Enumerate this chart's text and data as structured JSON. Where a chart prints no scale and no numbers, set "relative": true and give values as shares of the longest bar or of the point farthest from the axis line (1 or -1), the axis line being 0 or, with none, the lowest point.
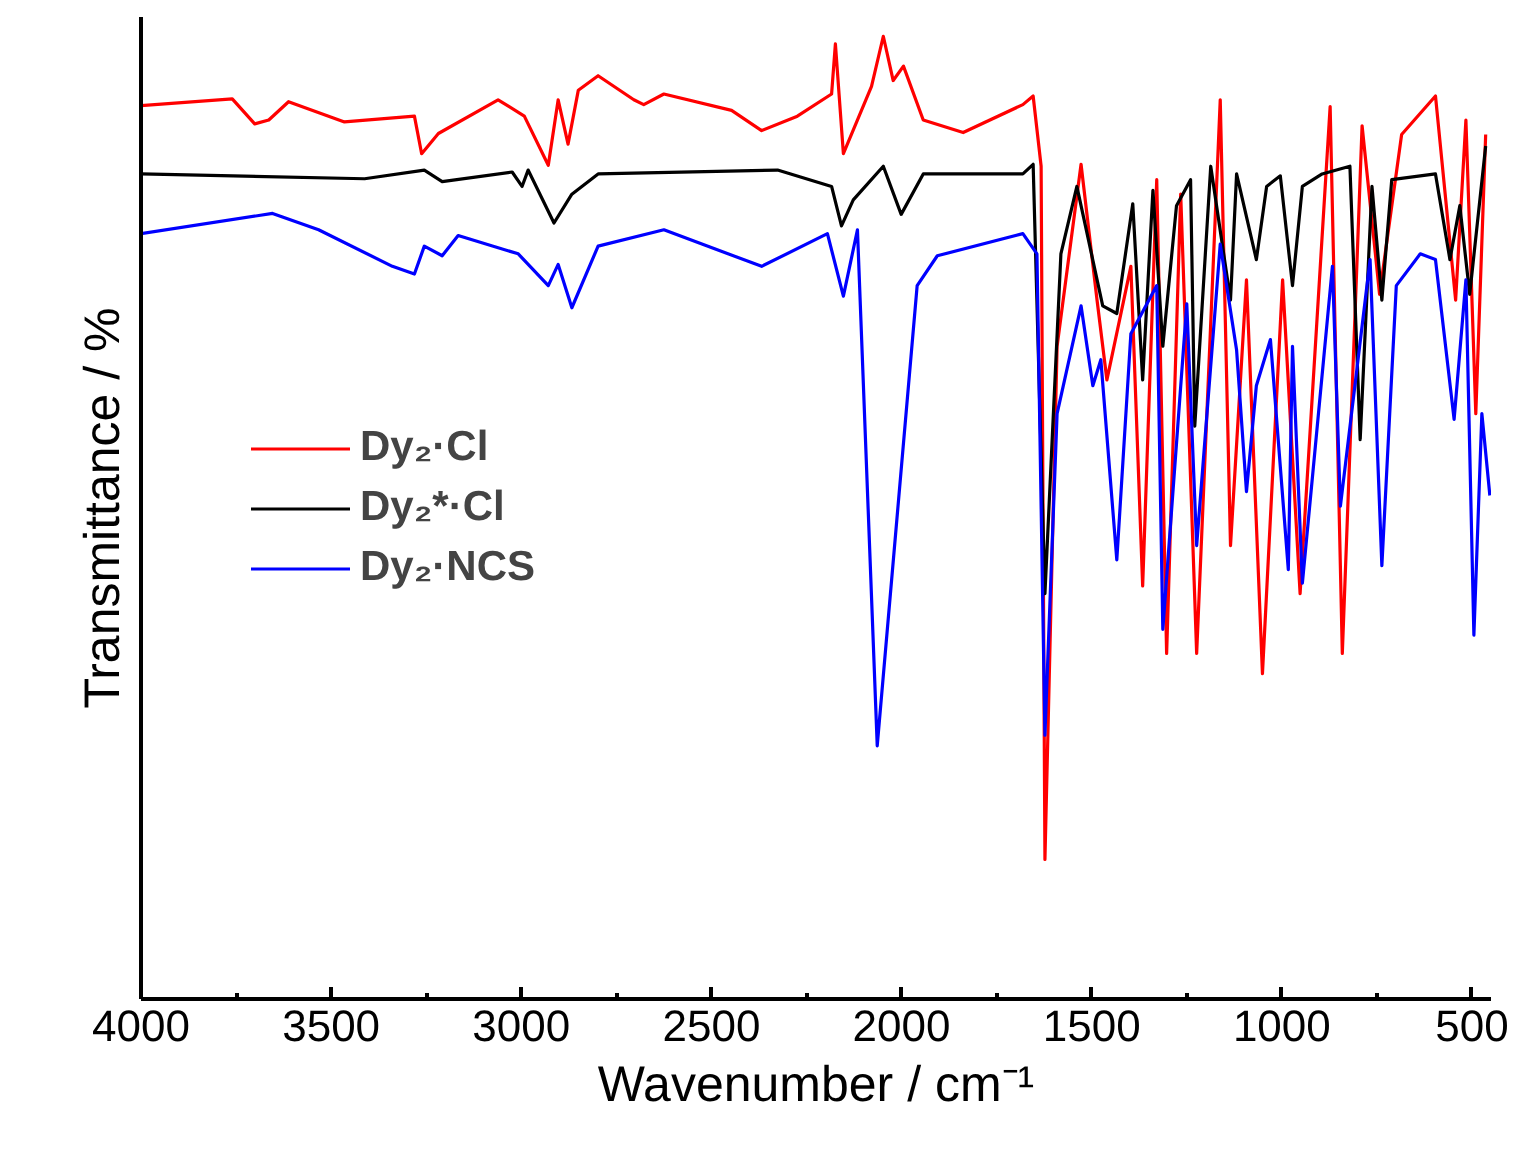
{
  "chart_data": {
    "type": "line",
    "xlabel": "Wavenumber / cm⁻¹",
    "ylabel": "Transmittance / %",
    "relative": true,
    "xlim": [
      4000,
      450
    ],
    "xticks": [
      4000,
      {
        "value": 3750,
        "label": null
      },
      3500,
      {
        "value": 3250,
        "label": null
      },
      3000,
      {
        "value": 2750,
        "label": null
      },
      2500,
      {
        "value": 2250,
        "label": null
      },
      2000,
      {
        "value": 1750,
        "label": null
      },
      1500,
      {
        "value": 1250,
        "label": null
      },
      1000,
      {
        "value": 750,
        "label": null
      },
      500
    ],
    "grid": false,
    "legend": "left",
    "marker": "none",
    "line_style": "solid",
    "series": [
      {
        "name": "Dy₂·Cl",
        "color": "#ff0000",
        "x": [
          4000,
          3760,
          3701,
          3664,
          3612,
          3465,
          3281,
          3262,
          3218,
          3061,
          2992,
          2929,
          2903,
          2877,
          2850,
          2798,
          2704,
          2678,
          2625,
          2447,
          2368,
          2274,
          2184,
          2174,
          2153,
          2079,
          2048,
          2022,
          1995,
          1943,
          1838,
          1681,
          1654,
          1633,
          1623,
          1591,
          1528,
          1486,
          1460,
          1397,
          1366,
          1329,
          1303,
          1266,
          1224,
          1162,
          1135,
          1093,
          1051,
          998,
          952,
          873,
          841,
          789,
          743,
          685,
          596,
          543,
          516,
          490,
          464
        ],
        "values": [
          0.928,
          0.935,
          0.909,
          0.913,
          0.932,
          0.911,
          0.917,
          0.878,
          0.899,
          0.934,
          0.917,
          0.866,
          0.934,
          0.888,
          0.944,
          0.959,
          0.934,
          0.929,
          0.94,
          0.923,
          0.902,
          0.917,
          0.94,
          0.992,
          0.878,
          0.948,
          1.0,
          0.954,
          0.969,
          0.913,
          0.9,
          0.929,
          0.938,
          0.865,
          0.145,
          0.678,
          0.867,
          0.726,
          0.643,
          0.761,
          0.429,
          0.851,
          0.359,
          0.836,
          0.359,
          0.934,
          0.471,
          0.747,
          0.338,
          0.747,
          0.421,
          0.927,
          0.359,
          0.907,
          0.732,
          0.898,
          0.938,
          0.726,
          0.913,
          0.608,
          0.898
        ]
      },
      {
        "name": "Dy₂*·Cl",
        "color": "#000000",
        "x": [
          4000,
          3412,
          3255,
          3208,
          3024,
          2998,
          2982,
          2914,
          2867,
          2798,
          2326,
          2184,
          2158,
          2127,
          2048,
          2001,
          1943,
          1681,
          1654,
          1623,
          1581,
          1539,
          1471,
          1434,
          1392,
          1366,
          1339,
          1313,
          1277,
          1240,
          1229,
          1187,
          1135,
          1119,
          1067,
          1040,
          1004,
          972,
          946,
          894,
          821,
          794,
          763,
          737,
          711,
          596,
          558,
          532,
          506,
          464
        ],
        "values": [
          0.857,
          0.852,
          0.861,
          0.849,
          0.859,
          0.844,
          0.861,
          0.806,
          0.836,
          0.857,
          0.861,
          0.844,
          0.803,
          0.83,
          0.865,
          0.815,
          0.857,
          0.857,
          0.867,
          0.421,
          0.774,
          0.844,
          0.72,
          0.712,
          0.826,
          0.643,
          0.84,
          0.678,
          0.824,
          0.851,
          0.595,
          0.865,
          0.726,
          0.857,
          0.768,
          0.844,
          0.855,
          0.741,
          0.844,
          0.857,
          0.865,
          0.581,
          0.844,
          0.726,
          0.851,
          0.857,
          0.768,
          0.824,
          0.732,
          0.886
        ]
      },
      {
        "name": "Dy₂·NCS",
        "color": "#0000ff",
        "x": [
          4000,
          3654,
          3533,
          3339,
          3281,
          3255,
          3208,
          3166,
          3008,
          2929,
          2903,
          2867,
          2798,
          2625,
          2368,
          2195,
          2153,
          2116,
          2064,
          1959,
          1906,
          1681,
          1644,
          1623,
          1591,
          1528,
          1497,
          1476,
          1434,
          1397,
          1329,
          1313,
          1250,
          1224,
          1162,
          1119,
          1093,
          1067,
          1030,
          983,
          972,
          946,
          867,
          846,
          768,
          737,
          699,
          636,
          596,
          547,
          516,
          495,
          474,
          453
        ],
        "values": [
          0.795,
          0.816,
          0.799,
          0.761,
          0.753,
          0.782,
          0.772,
          0.793,
          0.774,
          0.741,
          0.763,
          0.718,
          0.782,
          0.799,
          0.761,
          0.795,
          0.73,
          0.799,
          0.263,
          0.741,
          0.772,
          0.795,
          0.774,
          0.274,
          0.608,
          0.72,
          0.637,
          0.664,
          0.456,
          0.691,
          0.741,
          0.384,
          0.722,
          0.471,
          0.784,
          0.674,
          0.527,
          0.637,
          0.685,
          0.446,
          0.678,
          0.432,
          0.761,
          0.512,
          0.768,
          0.45,
          0.741,
          0.774,
          0.768,
          0.602,
          0.747,
          0.378,
          0.608,
          0.523
        ]
      }
    ]
  }
}
